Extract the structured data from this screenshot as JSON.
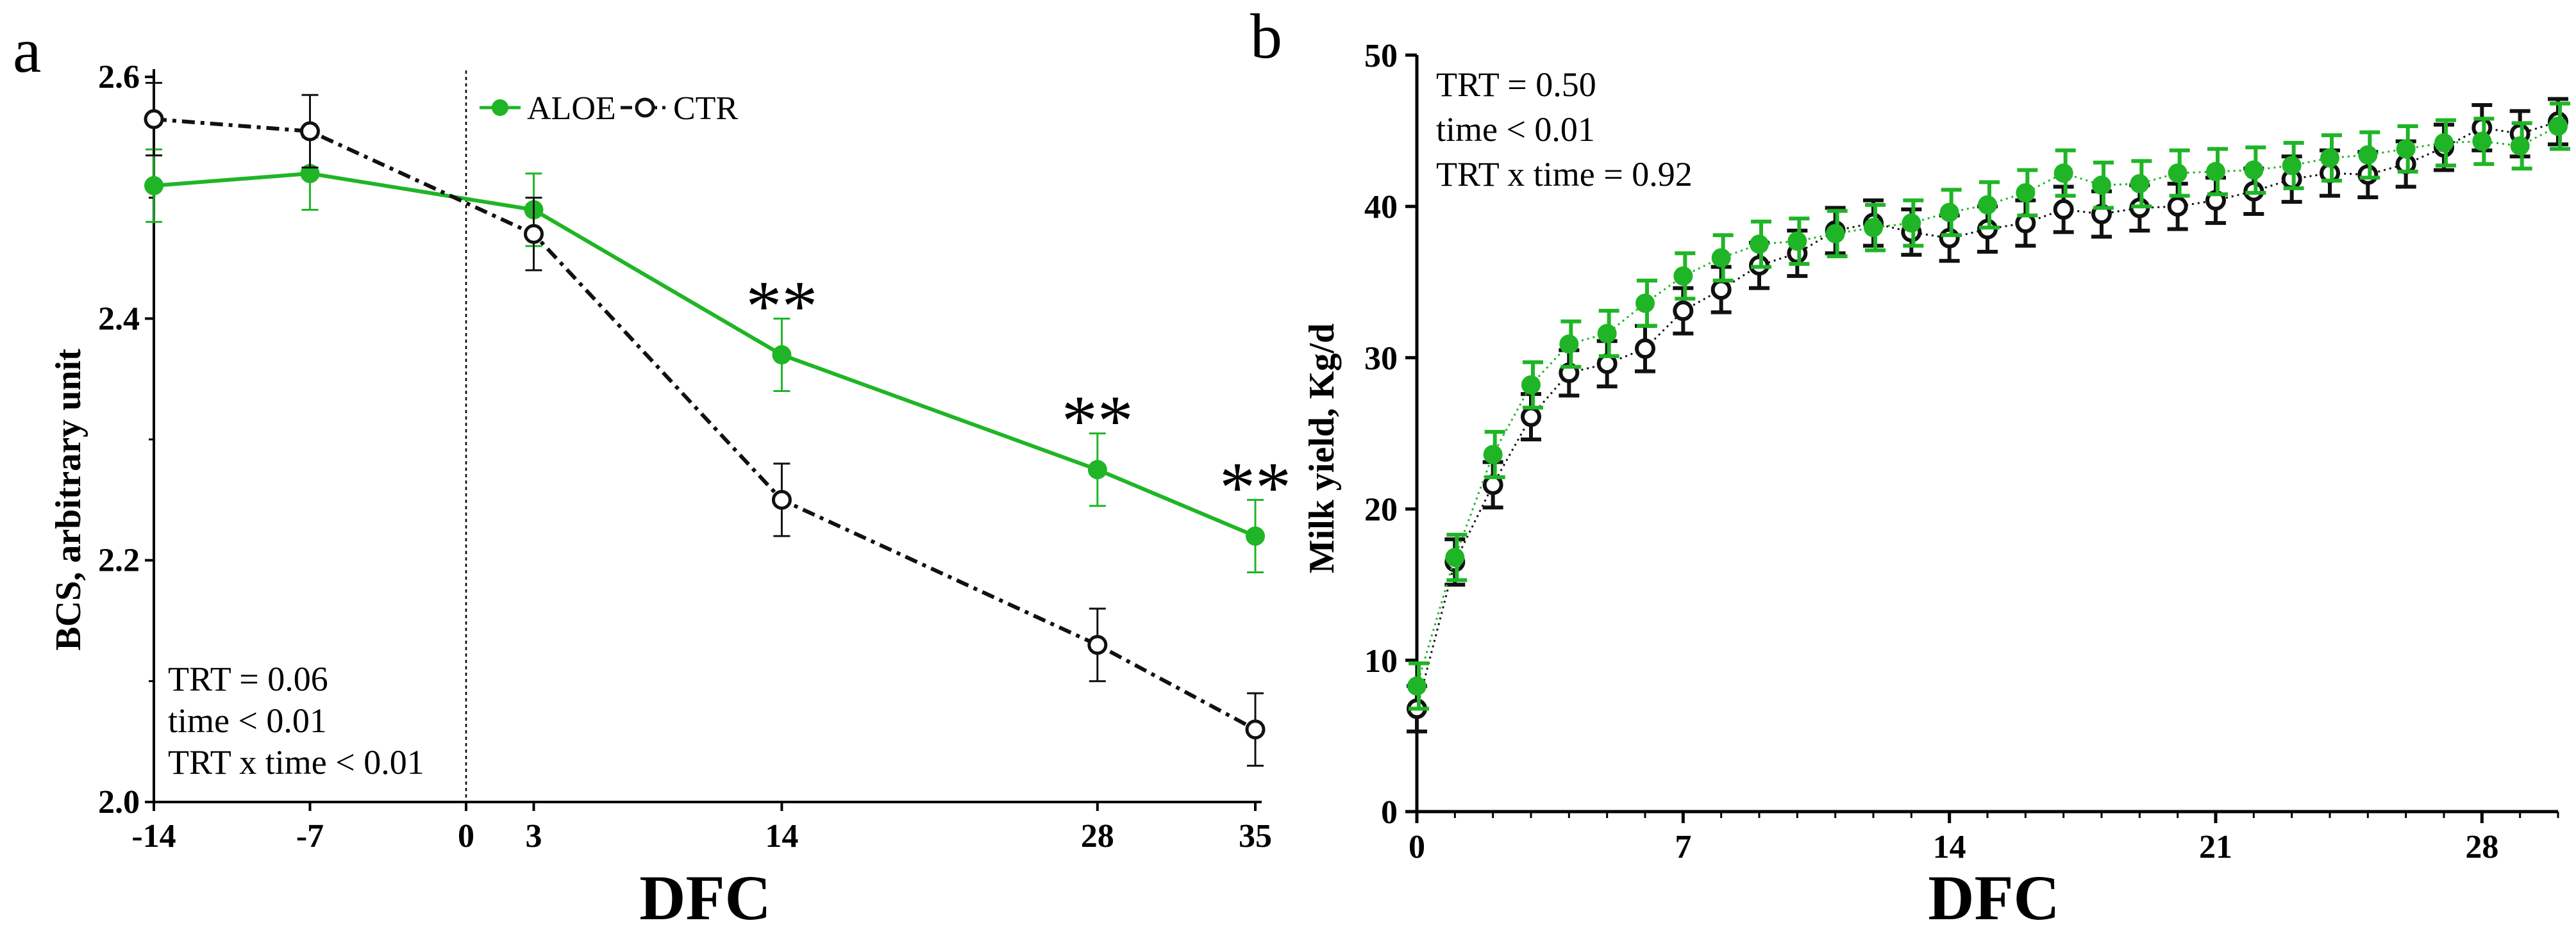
{
  "chart_data": [
    {
      "panel": "a",
      "type": "line",
      "xlabel": "DFC",
      "ylabel": "BCS, arbitrary unit",
      "ylim": [
        2.0,
        2.6
      ],
      "xlim": [
        -14,
        35
      ],
      "xticks": [
        -14,
        -7,
        0,
        3,
        14,
        28,
        35
      ],
      "yticks": [
        2.0,
        2.2,
        2.4,
        2.6
      ],
      "ytick_labels": [
        "2.0",
        "2.2",
        "2.4",
        "2.6"
      ],
      "reference_line_x": 0,
      "legend": [
        "ALOE",
        "CTR"
      ],
      "annotations": [
        "TRT = 0.06",
        "time < 0.01",
        "TRT x time < 0.01"
      ],
      "significance": [
        {
          "x": 14,
          "label": "**"
        },
        {
          "x": 28,
          "label": "**"
        },
        {
          "x": 35,
          "label": "**"
        }
      ],
      "series": [
        {
          "name": "ALOE",
          "color": "#1fb526",
          "marker": "filled",
          "line": "solid",
          "x": [
            -14,
            -7,
            3,
            14,
            28,
            35
          ],
          "values": [
            2.51,
            2.52,
            2.49,
            2.37,
            2.275,
            2.22
          ],
          "err": [
            0.03,
            0.03,
            0.03,
            0.03,
            0.03,
            0.03
          ]
        },
        {
          "name": "CTR",
          "color": "#111111",
          "marker": "open",
          "line": "dashdot",
          "x": [
            -14,
            -7,
            3,
            14,
            28,
            35
          ],
          "values": [
            2.565,
            2.555,
            2.47,
            2.25,
            2.13,
            2.06
          ],
          "err": [
            0.03,
            0.03,
            0.03,
            0.03,
            0.03,
            0.03
          ]
        }
      ]
    },
    {
      "panel": "b",
      "type": "line",
      "xlabel": "DFC",
      "ylabel": "Milk yield, Kg/d",
      "ylim": [
        0,
        50
      ],
      "xlim": [
        0,
        30
      ],
      "xticks": [
        0,
        7,
        14,
        21,
        28
      ],
      "yticks": [
        0,
        10,
        20,
        30,
        40,
        50
      ],
      "annotations": [
        "TRT = 0.50",
        "time < 0.01",
        "TRT x time = 0.92"
      ],
      "series": [
        {
          "name": "ALOE",
          "color": "#1fb526",
          "marker": "filled",
          "line": "dotted",
          "x": [
            0,
            1,
            2,
            3,
            4,
            5,
            6,
            7,
            8,
            9,
            10,
            11,
            12,
            13,
            14,
            15,
            16,
            17,
            18,
            19,
            20,
            21,
            22,
            23,
            24,
            25,
            26,
            27,
            28,
            29,
            30
          ],
          "values": [
            8.3,
            16.8,
            23.6,
            28.2,
            30.9,
            31.6,
            33.6,
            35.4,
            36.6,
            37.5,
            37.7,
            38.2,
            38.6,
            38.9,
            39.6,
            40.1,
            40.9,
            42.2,
            41.4,
            41.5,
            42.2,
            42.3,
            42.4,
            42.7,
            43.2,
            43.4,
            43.8,
            44.2,
            44.3,
            44.0,
            45.3
          ],
          "err": [
            1.5
          ]
        },
        {
          "name": "CTR",
          "color": "#111111",
          "marker": "open",
          "line": "dotted",
          "x": [
            0,
            1,
            2,
            3,
            4,
            5,
            6,
            7,
            8,
            9,
            10,
            11,
            12,
            13,
            14,
            15,
            16,
            17,
            18,
            19,
            20,
            21,
            22,
            23,
            24,
            25,
            26,
            27,
            28,
            29,
            30
          ],
          "values": [
            6.8,
            16.5,
            21.6,
            26.1,
            29.0,
            29.6,
            30.6,
            33.1,
            34.5,
            36.1,
            36.9,
            38.4,
            38.9,
            38.3,
            37.9,
            38.5,
            38.9,
            39.8,
            39.5,
            39.9,
            40.0,
            40.4,
            41.0,
            41.8,
            42.2,
            42.1,
            42.8,
            43.9,
            45.2,
            44.8,
            45.6
          ],
          "err": [
            1.5
          ]
        }
      ]
    }
  ]
}
